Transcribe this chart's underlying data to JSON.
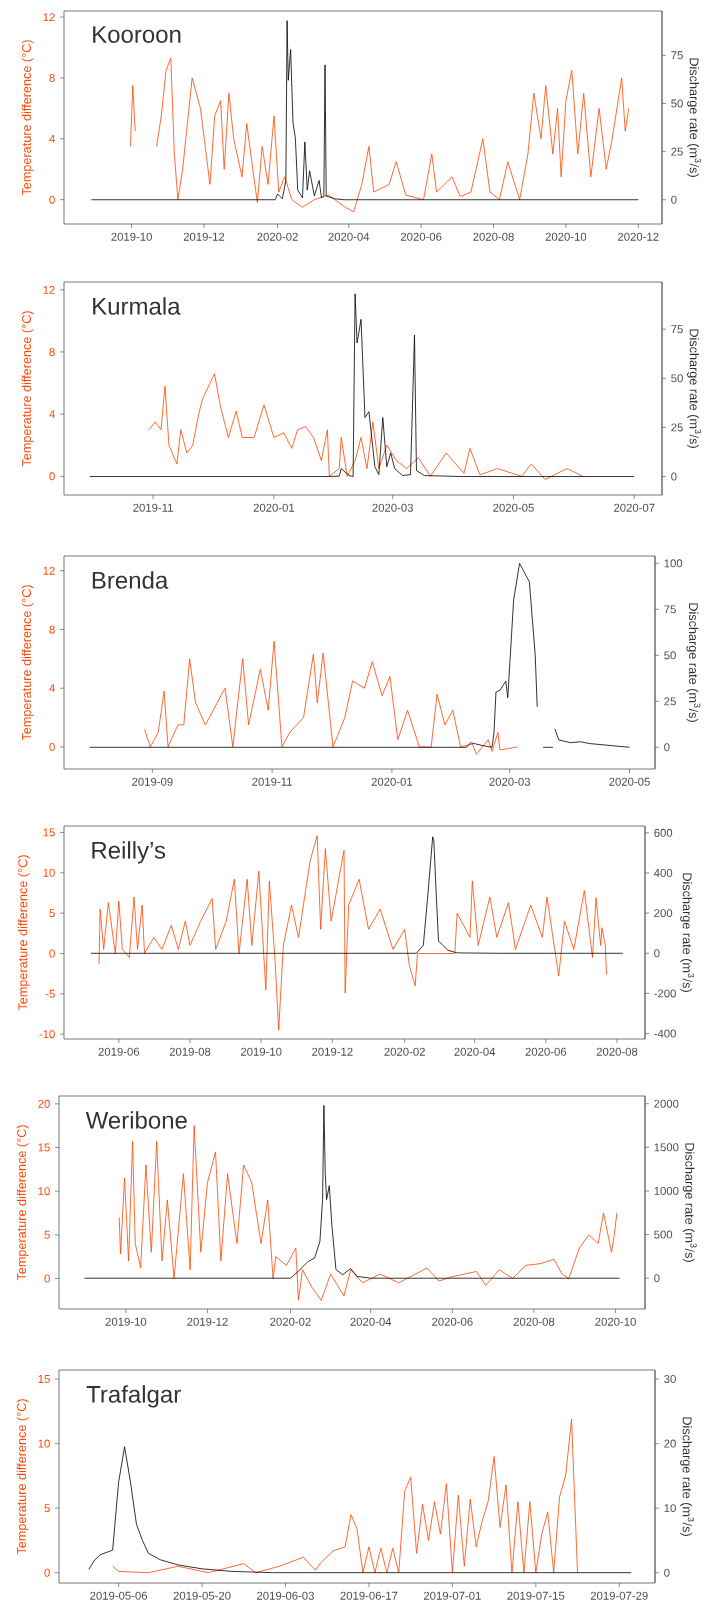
{
  "chart_data": [
    {
      "type": "line",
      "title": "Kooroon",
      "ylabel": "Temperature difference (°C)",
      "y2label": "Discharge rate (m$^{3}$/s)",
      "xlim": [
        "2019-08-05",
        "2020-12-21"
      ],
      "xticks": [
        "2019-10",
        "2019-12",
        "2020-02",
        "2020-04",
        "2020-06",
        "2020-08",
        "2020-10",
        "2020-12"
      ],
      "ylim": [
        -1.6,
        12.4
      ],
      "yticks": [
        0,
        4,
        8,
        12
      ],
      "y2lim": [
        -12.6,
        98
      ],
      "y2ticks": [
        0,
        25,
        50,
        75
      ],
      "series": [
        {
          "color": "#ff4500",
          "x": [
            "2019-09-30",
            "2019-10-02",
            "2019-10-04",
            "2019-10-12",
            "2019-10-22",
            "2019-10-26",
            "2019-10-30",
            "2019-11-03",
            "2019-11-06",
            "2019-11-09",
            "2019-11-13",
            "2019-11-21",
            "2019-11-28",
            "2019-12-02",
            "2019-12-06",
            "2019-12-10",
            "2019-12-15",
            "2019-12-18",
            "2019-12-22",
            "2019-12-26",
            "2020-01-02",
            "2020-01-06",
            "2020-01-12",
            "2020-01-15",
            "2020-01-19",
            "2020-01-24",
            "2020-01-29",
            "2020-02-02",
            "2020-02-07",
            "2020-02-13",
            "2020-02-22",
            "2020-03-03",
            "2020-03-15",
            "2020-03-29",
            "2020-04-05",
            "2020-04-12",
            "2020-04-18",
            "2020-04-22",
            "2020-05-05",
            "2020-05-11",
            "2020-05-19",
            "2020-06-03",
            "2020-06-10",
            "2020-06-14",
            "2020-06-27",
            "2020-07-04",
            "2020-07-13",
            "2020-07-23",
            "2020-07-29",
            "2020-08-06",
            "2020-08-13",
            "2020-08-23",
            "2020-08-30",
            "2020-09-04",
            "2020-09-10",
            "2020-09-14",
            "2020-09-20",
            "2020-09-24",
            "2020-09-27",
            "2020-10-01",
            "2020-10-06",
            "2020-10-11",
            "2020-10-16",
            "2020-10-22",
            "2020-10-29",
            "2020-11-04",
            "2020-11-09",
            "2020-11-13",
            "2020-11-17",
            "2020-11-20",
            "2020-11-23"
          ],
          "values": [
            3.5,
            7.5,
            4.5,
            null,
            3.5,
            5.5,
            8.5,
            9.3,
            3,
            0,
            2,
            8,
            6,
            3.5,
            1,
            5.5,
            6.5,
            2,
            7,
            4,
            1.5,
            5,
            1.5,
            -0.2,
            3.5,
            1,
            5.5,
            0.5,
            1.5,
            0,
            -0.5,
            0,
            0.3,
            -0.5,
            -0.8,
            1,
            3.5,
            0.5,
            1,
            2.5,
            0.3,
            0,
            3,
            0.5,
            1.5,
            0.2,
            0.5,
            4,
            0.5,
            0,
            2.5,
            0,
            3,
            7,
            4,
            7.5,
            3,
            6,
            1.5,
            6.5,
            8.5,
            3,
            7,
            1.5,
            6,
            2,
            4,
            6,
            8,
            4.5,
            6
          ]
        },
        {
          "color": "#000000",
          "axis": "y2",
          "x": [
            "2019-08-28",
            "2020-01-30",
            "2020-02-01",
            "2020-02-05",
            "2020-02-08",
            "2020-02-09",
            "2020-02-10",
            "2020-02-12",
            "2020-02-14",
            "2020-02-16",
            "2020-02-18",
            "2020-02-22",
            "2020-02-24",
            "2020-02-26",
            "2020-02-28",
            "2020-03-03",
            "2020-03-07",
            "2020-03-09",
            "2020-03-11",
            "2020-03-12",
            "2020-03-13",
            "2020-03-20",
            "2020-03-28",
            "2020-12-01"
          ],
          "values": [
            0,
            0,
            3,
            0.5,
            10,
            93,
            62,
            78,
            40,
            32,
            5,
            1,
            30,
            5,
            15,
            2,
            10,
            1,
            2,
            70,
            2,
            0.5,
            0,
            0
          ]
        }
      ]
    },
    {
      "type": "line",
      "title": "Kurmala",
      "ylabel": "Temperature difference (°C)",
      "y2label": "Discharge rate (m$^{3}$/s)",
      "xlim": [
        "2019-09-17",
        "2020-07-15"
      ],
      "xticks": [
        "2019-11",
        "2020-01",
        "2020-03",
        "2020-05",
        "2020-07"
      ],
      "ylim": [
        -1.2,
        12.5
      ],
      "yticks": [
        0,
        4,
        8,
        12
      ],
      "y2lim": [
        -9.4,
        99
      ],
      "y2ticks": [
        0,
        25,
        50,
        75
      ],
      "series": [
        {
          "color": "#ff4500",
          "x": [
            "2019-10-30",
            "2019-11-02",
            "2019-11-05",
            "2019-11-07",
            "2019-11-09",
            "2019-11-13",
            "2019-11-15",
            "2019-11-18",
            "2019-11-21",
            "2019-11-24",
            "2019-11-26",
            "2019-12-02",
            "2019-12-05",
            "2019-12-09",
            "2019-12-13",
            "2019-12-16",
            "2019-12-22",
            "2019-12-27",
            "2020-01-01",
            "2020-01-06",
            "2020-01-10",
            "2020-01-13",
            "2020-01-17",
            "2020-01-21",
            "2020-01-25",
            "2020-01-28",
            "2020-01-29",
            "2020-02-03",
            "2020-02-04",
            "2020-02-07",
            "2020-02-11",
            "2020-02-14",
            "2020-02-17",
            "2020-02-20",
            "2020-02-23",
            "2020-02-27",
            "2020-03-03",
            "2020-03-08",
            "2020-03-14",
            "2020-03-20",
            "2020-03-28",
            "2020-04-06",
            "2020-04-09",
            "2020-04-14",
            "2020-04-23",
            "2020-05-05",
            "2020-05-10",
            "2020-05-17",
            "2020-05-28",
            "2020-06-02",
            "2020-06-05"
          ],
          "values": [
            3,
            3.5,
            3,
            5.8,
            2,
            0.8,
            3,
            1.5,
            2,
            4,
            5,
            6.6,
            4.5,
            2.5,
            4.2,
            2.5,
            2.5,
            4.6,
            2.5,
            2.8,
            1.8,
            3,
            3.2,
            2.5,
            1,
            3,
            0,
            0.5,
            2.5,
            0,
            1,
            2.5,
            0.5,
            3.5,
            0.5,
            2,
            1,
            0.5,
            1.2,
            0,
            1.5,
            0.2,
            1.8,
            0.1,
            0.5,
            0,
            0.8,
            -0.2,
            0.5,
            0.2,
            0
          ]
        },
        {
          "color": "#000000",
          "axis": "y2",
          "x": [
            "2019-09-30",
            "2020-01-29",
            "2020-02-03",
            "2020-02-04",
            "2020-02-08",
            "2020-02-10",
            "2020-02-11",
            "2020-02-12",
            "2020-02-14",
            "2020-02-16",
            "2020-02-18",
            "2020-02-21",
            "2020-02-23",
            "2020-02-25",
            "2020-02-27",
            "2020-02-29",
            "2020-03-02",
            "2020-03-06",
            "2020-03-10",
            "2020-03-12",
            "2020-03-13",
            "2020-03-17",
            "2020-04-05",
            "2020-07-01"
          ],
          "values": [
            0,
            0,
            0.2,
            4,
            0.5,
            0,
            93,
            68,
            80,
            30,
            33,
            5,
            1,
            30,
            5,
            12,
            4,
            0.5,
            1,
            72,
            3,
            0.5,
            0,
            0
          ]
        }
      ]
    },
    {
      "type": "line",
      "title": "Brenda",
      "ylabel": "Temperature difference (°C)",
      "y2label": "Discharge rate (m$^{3}$/s)",
      "xlim": [
        "2019-07-18",
        "2020-05-14"
      ],
      "xticks": [
        "2019-09",
        "2019-11",
        "2020-01",
        "2020-03",
        "2020-05"
      ],
      "ylim": [
        -1.5,
        13
      ],
      "yticks": [
        0,
        4,
        8,
        12
      ],
      "y2lim": [
        -11.8,
        104
      ],
      "y2ticks": [
        0,
        25,
        50,
        75,
        100
      ],
      "series": [
        {
          "color": "#ff4500",
          "x": [
            "2019-08-28",
            "2019-08-31",
            "2019-09-04",
            "2019-09-07",
            "2019-09-09",
            "2019-09-14",
            "2019-09-17",
            "2019-09-20",
            "2019-09-23",
            "2019-09-28",
            "2019-10-04",
            "2019-10-08",
            "2019-10-12",
            "2019-10-17",
            "2019-10-20",
            "2019-10-26",
            "2019-10-30",
            "2019-11-02",
            "2019-11-06",
            "2019-11-10",
            "2019-11-17",
            "2019-11-22",
            "2019-11-24",
            "2019-11-27",
            "2019-12-02",
            "2019-12-08",
            "2019-12-12",
            "2019-12-18",
            "2019-12-22",
            "2019-12-27",
            "2019-12-31",
            "2020-01-04",
            "2020-01-09",
            "2020-01-15",
            "2020-01-21",
            "2020-01-24",
            "2020-01-28",
            "2020-02-01",
            "2020-02-05",
            "2020-02-11",
            "2020-02-13",
            "2020-02-19",
            "2020-02-21",
            "2020-02-24",
            "2020-02-25",
            "2020-03-05"
          ],
          "values": [
            1.2,
            0,
            1,
            3.8,
            0,
            1.5,
            1.5,
            6,
            3,
            1.5,
            3,
            4,
            0,
            6,
            1.5,
            5.3,
            2.5,
            7.2,
            0,
            1,
            2,
            6.3,
            3,
            6.4,
            0,
            2,
            4.5,
            4,
            5.8,
            3.5,
            4.8,
            0.5,
            2.5,
            0,
            0,
            3.6,
            1.5,
            2.5,
            0,
            0.2,
            -0.5,
            0.5,
            -0.3,
            1,
            -0.2,
            0
          ]
        },
        {
          "color": "#000000",
          "axis": "y2",
          "x": [
            "2019-07-31",
            "2020-02-08",
            "2020-02-10",
            "2020-02-16",
            "2020-02-21",
            "2020-02-22",
            "2020-02-23",
            "2020-02-25",
            "2020-02-28",
            "2020-02-29",
            "2020-03-03",
            "2020-03-06",
            "2020-03-11",
            "2020-03-14",
            "2020-03-15",
            "2020-03-16",
            "2020-03-18",
            "2020-03-23",
            "2020-03-23T12:00",
            "2020-03-24",
            "2020-03-26",
            "2020-04-01",
            "2020-04-06",
            "2020-04-11",
            "2020-04-21",
            "2020-05-01"
          ],
          "values": [
            0,
            0,
            2.5,
            1,
            0,
            8,
            30,
            31,
            36,
            27,
            80,
            100,
            90,
            50,
            22,
            null,
            0,
            0,
            null,
            10,
            4,
            2.5,
            3,
            2,
            1,
            0
          ]
        }
      ]
    },
    {
      "type": "line",
      "title": "Reilly’s",
      "ylabel": "Temperature difference (°C)",
      "y2label": "Discharge rate (m$^{3}$/s)",
      "xlim": [
        "2019-04-15",
        "2020-08-25"
      ],
      "xticks": [
        "2019-06",
        "2019-08",
        "2019-10",
        "2019-12",
        "2020-02",
        "2020-04",
        "2020-06",
        "2020-08"
      ],
      "ylim": [
        -10.6,
        15.8
      ],
      "yticks": [
        -10,
        -5,
        0,
        5,
        10,
        15
      ],
      "y2lim": [
        -427,
        634
      ],
      "y2ticks": [
        -400,
        -200,
        0,
        200,
        400,
        600
      ],
      "series": [
        {
          "color": "#ff4500",
          "x": [
            "2019-05-15",
            "2019-05-16",
            "2019-05-19",
            "2019-05-23",
            "2019-05-29",
            "2019-06-01",
            "2019-06-04",
            "2019-06-10",
            "2019-06-14",
            "2019-06-17",
            "2019-06-21",
            "2019-06-23",
            "2019-07-01",
            "2019-07-08",
            "2019-07-16",
            "2019-07-22",
            "2019-07-28",
            "2019-08-01",
            "2019-08-10",
            "2019-08-20",
            "2019-08-23",
            "2019-09-01",
            "2019-09-08",
            "2019-09-12",
            "2019-09-19",
            "2019-09-23",
            "2019-09-29",
            "2019-10-05",
            "2019-10-08",
            "2019-10-13",
            "2019-10-16",
            "2019-10-20",
            "2019-10-27",
            "2019-11-02",
            "2019-11-12",
            "2019-11-18",
            "2019-11-21",
            "2019-11-25",
            "2019-11-30",
            "2019-12-11",
            "2019-12-12",
            "2019-12-15",
            "2019-12-24",
            "2020-01-01",
            "2020-01-11",
            "2020-01-22",
            "2020-02-01",
            "2020-02-05",
            "2020-02-10",
            "2020-02-12",
            "2020-03-15",
            "2020-03-17",
            "2020-03-28",
            "2020-03-30",
            "2020-04-04",
            "2020-04-14",
            "2020-04-20",
            "2020-04-30",
            "2020-05-06",
            "2020-05-19",
            "2020-05-29",
            "2020-06-02",
            "2020-06-12",
            "2020-06-17",
            "2020-06-25",
            "2020-07-04",
            "2020-07-11",
            "2020-07-14",
            "2020-07-18",
            "2020-07-19",
            "2020-07-22",
            "2020-07-23"
          ],
          "values": [
            -1.3,
            5.5,
            0.5,
            6.3,
            0,
            6.5,
            0.5,
            -0.5,
            7,
            0.5,
            6,
            0,
            2,
            0.5,
            3.5,
            0.5,
            4,
            1,
            4,
            6.8,
            0.5,
            4,
            9.2,
            0,
            9.2,
            1,
            10.2,
            -4.5,
            9,
            -1,
            -9.5,
            1,
            6,
            2,
            11.5,
            14.6,
            3,
            13,
            4,
            12.8,
            -4.9,
            6,
            9.2,
            3,
            5.5,
            0.5,
            3,
            -1.5,
            -4,
            0,
            0,
            5,
            2,
            9,
            1,
            7,
            2,
            6.3,
            0.5,
            6,
            2,
            7,
            -2.8,
            4,
            0.5,
            7.8,
            -0.5,
            6.9,
            1,
            3.2,
            1,
            -2.6
          ]
        },
        {
          "color": "#000000",
          "axis": "y2",
          "x": [
            "2019-05-08",
            "2020-02-11",
            "2020-02-17",
            "2020-02-21",
            "2020-02-25",
            "2020-02-26",
            "2020-02-28",
            "2020-03-01",
            "2020-03-04",
            "2020-03-09",
            "2020-03-17",
            "2020-04-20",
            "2020-08-06"
          ],
          "values": [
            0,
            0,
            40,
            300,
            580,
            560,
            300,
            60,
            45,
            15,
            2,
            0,
            0
          ]
        }
      ]
    },
    {
      "type": "line",
      "title": "Weribone",
      "ylabel": "Temperature difference (°C)",
      "y2label": "Discharge rate (m$^{3}$/s)",
      "xlim": [
        "2019-08-12",
        "2020-10-23"
      ],
      "xticks": [
        "2019-10",
        "2019-12",
        "2020-02",
        "2020-04",
        "2020-06",
        "2020-08",
        "2020-10"
      ],
      "ylim": [
        -3.5,
        20.9
      ],
      "yticks": [
        0,
        5,
        10,
        15,
        20
      ],
      "y2lim": [
        -353,
        2088
      ],
      "y2ticks": [
        0,
        500,
        1000,
        1500,
        2000
      ],
      "series": [
        {
          "color": "#ff4500",
          "x": [
            "2019-09-26",
            "2019-09-27",
            "2019-09-30",
            "2019-10-03",
            "2019-10-06",
            "2019-10-08",
            "2019-10-12",
            "2019-10-16",
            "2019-10-20",
            "2019-10-24",
            "2019-10-28",
            "2019-11-01",
            "2019-11-06",
            "2019-11-13",
            "2019-11-18",
            "2019-11-21",
            "2019-11-26",
            "2019-12-01",
            "2019-12-07",
            "2019-12-11",
            "2019-12-16",
            "2019-12-23",
            "2019-12-28",
            "2020-01-03",
            "2020-01-10",
            "2020-01-15",
            "2020-01-19",
            "2020-01-21",
            "2020-01-29",
            "2020-02-05",
            "2020-02-07",
            "2020-02-10",
            "2020-02-17",
            "2020-02-24",
            "2020-03-02",
            "2020-03-12",
            "2020-03-17",
            "2020-03-26",
            "2020-04-08",
            "2020-04-22",
            "2020-05-13",
            "2020-05-22",
            "2020-06-01",
            "2020-06-19",
            "2020-06-26",
            "2020-07-06",
            "2020-07-16",
            "2020-07-26",
            "2020-08-06",
            "2020-08-16",
            "2020-08-22",
            "2020-08-27",
            "2020-09-04",
            "2020-09-11",
            "2020-09-18",
            "2020-09-22",
            "2020-09-28",
            "2020-09-30",
            "2020-10-02"
          ],
          "values": [
            7,
            2.8,
            11.5,
            2,
            15.7,
            4,
            1.2,
            13,
            3,
            15.7,
            2,
            9,
            0,
            12,
            1,
            17.5,
            3,
            11,
            14.5,
            2,
            12,
            4,
            13,
            11,
            4,
            9,
            0,
            2.5,
            1.5,
            3.5,
            -2.5,
            1,
            -1,
            -2.5,
            0.5,
            -2,
            1,
            -0.5,
            0.5,
            -0.5,
            1.2,
            -0.3,
            0.2,
            0.8,
            -0.8,
            1,
            0,
            1.5,
            1.7,
            2.2,
            0.5,
            0,
            3.5,
            5,
            4,
            7.5,
            3,
            5,
            7.5
          ]
        },
        {
          "color": "#000000",
          "axis": "y2",
          "x": [
            "2019-08-31",
            "2020-01-23",
            "2020-02-01",
            "2020-02-07",
            "2020-02-14",
            "2020-02-19",
            "2020-02-23",
            "2020-02-25",
            "2020-02-26",
            "2020-02-27",
            "2020-02-28",
            "2020-03-01",
            "2020-03-03",
            "2020-03-06",
            "2020-03-11",
            "2020-03-17",
            "2020-03-22",
            "2020-04-01",
            "2020-10-04"
          ],
          "values": [
            0,
            0,
            0,
            80,
            190,
            230,
            420,
            900,
            1980,
            1200,
            900,
            1060,
            600,
            100,
            40,
            110,
            20,
            0,
            0
          ]
        }
      ]
    },
    {
      "type": "line",
      "title": "Trafalgar",
      "ylabel": "Temperature difference (°C)",
      "y2label": "Discharge rate (m$^{3}$/s)",
      "xlim": [
        "2019-04-26",
        "2019-08-04"
      ],
      "xticks": [
        "2019-05-06",
        "2019-05-20",
        "2019-06-03",
        "2019-06-17",
        "2019-07-01",
        "2019-07-15",
        "2019-07-29"
      ],
      "ylim": [
        -0.8,
        15.7
      ],
      "yticks": [
        0,
        5,
        10,
        15
      ],
      "y2lim": [
        -1.6,
        31.4
      ],
      "y2ticks": [
        0,
        10,
        20,
        30
      ],
      "series": [
        {
          "color": "#ff4500",
          "x": [
            "2019-05-05",
            "2019-05-06",
            "2019-05-11",
            "2019-05-16",
            "2019-05-19",
            "2019-05-21",
            "2019-05-27",
            "2019-05-29",
            "2019-06-02",
            "2019-06-06",
            "2019-06-08",
            "2019-06-09",
            "2019-06-11",
            "2019-06-13",
            "2019-06-14",
            "2019-06-15",
            "2019-06-16",
            "2019-06-17",
            "2019-06-18",
            "2019-06-19",
            "2019-06-20",
            "2019-06-21",
            "2019-06-22",
            "2019-06-23",
            "2019-06-24",
            "2019-06-25",
            "2019-06-26",
            "2019-06-27",
            "2019-06-28",
            "2019-06-29",
            "2019-06-30",
            "2019-07-01",
            "2019-07-02",
            "2019-07-03",
            "2019-07-04",
            "2019-07-05",
            "2019-07-06",
            "2019-07-07",
            "2019-07-08",
            "2019-07-09",
            "2019-07-10",
            "2019-07-11",
            "2019-07-12",
            "2019-07-13",
            "2019-07-14",
            "2019-07-15",
            "2019-07-16",
            "2019-07-17",
            "2019-07-18",
            "2019-07-19",
            "2019-07-20",
            "2019-07-21",
            "2019-07-22"
          ],
          "values": [
            0.5,
            0.1,
            0,
            0.5,
            0.2,
            0,
            0.7,
            0,
            0.5,
            1.2,
            0.2,
            0.8,
            1.7,
            2,
            4.5,
            3.4,
            0,
            2,
            0,
            1.9,
            0,
            1.9,
            0,
            6.3,
            7.4,
            1.5,
            5.3,
            2.5,
            5.5,
            3,
            6.9,
            0,
            6,
            0.5,
            5.7,
            2,
            4,
            5.5,
            9,
            3.5,
            6.8,
            0,
            5.5,
            0,
            5.5,
            0,
            3,
            4.7,
            0,
            5.9,
            7.5,
            11.9,
            0
          ]
        },
        {
          "color": "#000000",
          "axis": "y2",
          "x": [
            "2019-05-01",
            "2019-05-02",
            "2019-05-03",
            "2019-05-05",
            "2019-05-06",
            "2019-05-07",
            "2019-05-08",
            "2019-05-09",
            "2019-05-10",
            "2019-05-11",
            "2019-05-13",
            "2019-05-16",
            "2019-05-20",
            "2019-05-25",
            "2019-06-01",
            "2019-07-31"
          ],
          "values": [
            0.5,
            2,
            2.8,
            3.5,
            14,
            19.5,
            14,
            7.5,
            5,
            3,
            2,
            1.2,
            0.6,
            0.2,
            0,
            0
          ]
        }
      ]
    }
  ]
}
